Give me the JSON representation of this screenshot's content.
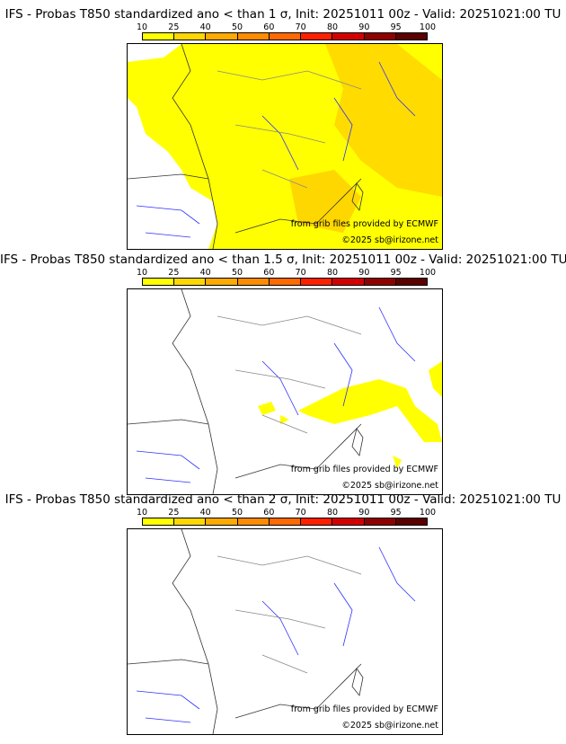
{
  "colorbar": {
    "ticks": [
      "10",
      "25",
      "40",
      "50",
      "60",
      "70",
      "80",
      "90",
      "95",
      "100"
    ],
    "colors": [
      "#ffff00",
      "#ffd700",
      "#ffaa00",
      "#ff8c00",
      "#ff6a00",
      "#ff2000",
      "#d40000",
      "#900000",
      "#5c0000"
    ]
  },
  "panels": [
    {
      "title": "IFS - Probas T850  standardized ano < than 1 σ, Init: 20251011 00z - Valid: 20251021:00 TU",
      "coverage": "wide"
    },
    {
      "title": "IFS - Probas T850  standardized ano < than 1.5 σ, Init: 20251011 00z - Valid: 20251021:00 TU",
      "coverage": "small"
    },
    {
      "title": "IFS - Probas T850  standardized ano < than 2 σ, Init: 20251011 00z - Valid: 20251021:00 TU",
      "coverage": "none"
    }
  ],
  "credits": {
    "source": "from grib files provided by ECMWF",
    "copyright": "©2025 sb@irizone.net"
  }
}
